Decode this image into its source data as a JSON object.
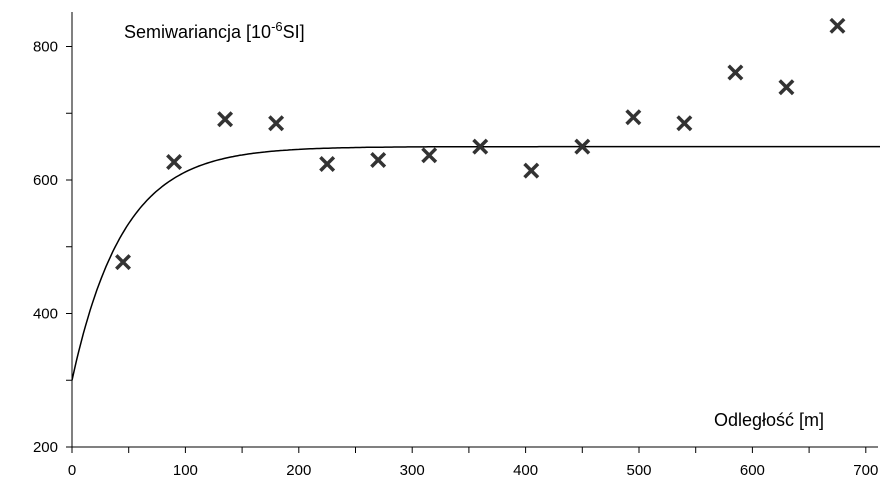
{
  "chart_data": {
    "type": "scatter",
    "ylabel": "Semiwariancja [10",
    "ylabel_sup": "-6",
    "ylabel_tail": "SI]",
    "xlabel": "Odległość [m]",
    "xlim": [
      0,
      715
    ],
    "ylim": [
      200,
      900
    ],
    "x_ticks": [
      0,
      100,
      200,
      300,
      400,
      500,
      600,
      700
    ],
    "y_ticks": [
      200,
      400,
      600,
      800
    ],
    "grid": false,
    "legend": "none",
    "series": [
      {
        "marker": "x",
        "color": "#333333",
        "points": [
          {
            "x": 45,
            "y": 477
          },
          {
            "x": 90,
            "y": 627
          },
          {
            "x": 135,
            "y": 691
          },
          {
            "x": 180,
            "y": 685
          },
          {
            "x": 225,
            "y": 624
          },
          {
            "x": 270,
            "y": 630
          },
          {
            "x": 315,
            "y": 637
          },
          {
            "x": 360,
            "y": 650
          },
          {
            "x": 405,
            "y": 614
          },
          {
            "x": 450,
            "y": 650
          },
          {
            "x": 495,
            "y": 694
          },
          {
            "x": 540,
            "y": 685
          },
          {
            "x": 585,
            "y": 761
          },
          {
            "x": 630,
            "y": 739
          },
          {
            "x": 675,
            "y": 831
          }
        ]
      }
    ],
    "model_curve": {
      "type": "exponential",
      "nugget": 300,
      "sill": 650,
      "range": 45,
      "color": "#000000"
    }
  }
}
